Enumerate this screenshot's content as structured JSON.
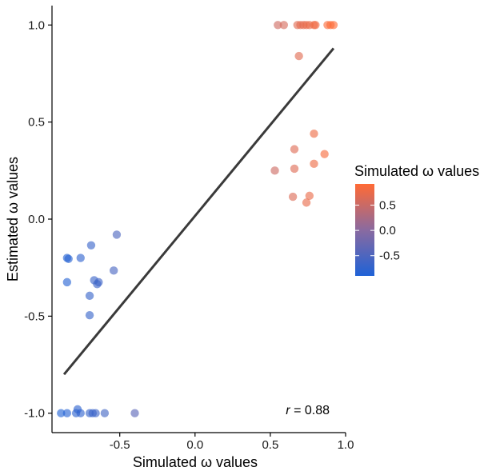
{
  "chart_data": {
    "type": "scatter",
    "xlabel": "Simulated ω values",
    "ylabel": "Estimated ω values",
    "xlim": [
      -0.95,
      1.0
    ],
    "ylim": [
      -1.1,
      1.1
    ],
    "x_ticks": [
      -0.5,
      0.0,
      0.5,
      1.0
    ],
    "x_tick_labels": [
      "-0.5",
      "0.0",
      "0.5",
      "1.0"
    ],
    "y_ticks": [
      -1.0,
      -0.5,
      0.0,
      0.5,
      1.0
    ],
    "y_tick_labels": [
      "-1.0",
      "-0.5",
      "0.0",
      "0.5",
      "1.0"
    ],
    "grid": false,
    "annotation": {
      "r_label": "r",
      "r_value": " = 0.88"
    },
    "fit_line": {
      "x": [
        -0.87,
        0.92
      ],
      "y": [
        -0.8,
        0.88
      ]
    },
    "color_scale": {
      "title": "Simulated ω values",
      "low_color": "#1f62d6",
      "mid_color": "#8a6aa0",
      "high_color": "#ff6a35",
      "range": [
        -0.9,
        0.92
      ],
      "ticks": [
        0.5,
        0.0,
        -0.5
      ],
      "tick_labels": [
        "0.5",
        "0.0",
        "-0.5"
      ]
    },
    "points": [
      {
        "x": 0.55,
        "y": 1.0
      },
      {
        "x": 0.59,
        "y": 1.0
      },
      {
        "x": 0.68,
        "y": 1.0
      },
      {
        "x": 0.7,
        "y": 1.0
      },
      {
        "x": 0.72,
        "y": 1.0
      },
      {
        "x": 0.74,
        "y": 1.0
      },
      {
        "x": 0.76,
        "y": 1.0
      },
      {
        "x": 0.79,
        "y": 1.0
      },
      {
        "x": 0.8,
        "y": 1.0
      },
      {
        "x": 0.88,
        "y": 1.0
      },
      {
        "x": 0.9,
        "y": 1.0
      },
      {
        "x": 0.92,
        "y": 1.0
      },
      {
        "x": 0.69,
        "y": 0.84
      },
      {
        "x": 0.79,
        "y": 0.44
      },
      {
        "x": 0.66,
        "y": 0.36
      },
      {
        "x": 0.86,
        "y": 0.335
      },
      {
        "x": 0.79,
        "y": 0.285
      },
      {
        "x": 0.66,
        "y": 0.26
      },
      {
        "x": 0.53,
        "y": 0.25
      },
      {
        "x": 0.65,
        "y": 0.115
      },
      {
        "x": 0.76,
        "y": 0.12
      },
      {
        "x": 0.74,
        "y": 0.085
      },
      {
        "x": -0.52,
        "y": -0.08
      },
      {
        "x": -0.85,
        "y": -0.2
      },
      {
        "x": -0.84,
        "y": -0.205
      },
      {
        "x": -0.76,
        "y": -0.2
      },
      {
        "x": -0.69,
        "y": -0.135
      },
      {
        "x": -0.54,
        "y": -0.265
      },
      {
        "x": -0.85,
        "y": -0.325
      },
      {
        "x": -0.67,
        "y": -0.315
      },
      {
        "x": -0.64,
        "y": -0.325
      },
      {
        "x": -0.65,
        "y": -0.335
      },
      {
        "x": -0.7,
        "y": -0.395
      },
      {
        "x": -0.7,
        "y": -0.495
      },
      {
        "x": -0.89,
        "y": -1.0
      },
      {
        "x": -0.85,
        "y": -1.0
      },
      {
        "x": -0.78,
        "y": -0.98
      },
      {
        "x": -0.79,
        "y": -1.0
      },
      {
        "x": -0.76,
        "y": -1.0
      },
      {
        "x": -0.7,
        "y": -1.0
      },
      {
        "x": -0.68,
        "y": -1.0
      },
      {
        "x": -0.66,
        "y": -1.0
      },
      {
        "x": -0.6,
        "y": -1.0
      },
      {
        "x": -0.4,
        "y": -1.0
      }
    ]
  }
}
